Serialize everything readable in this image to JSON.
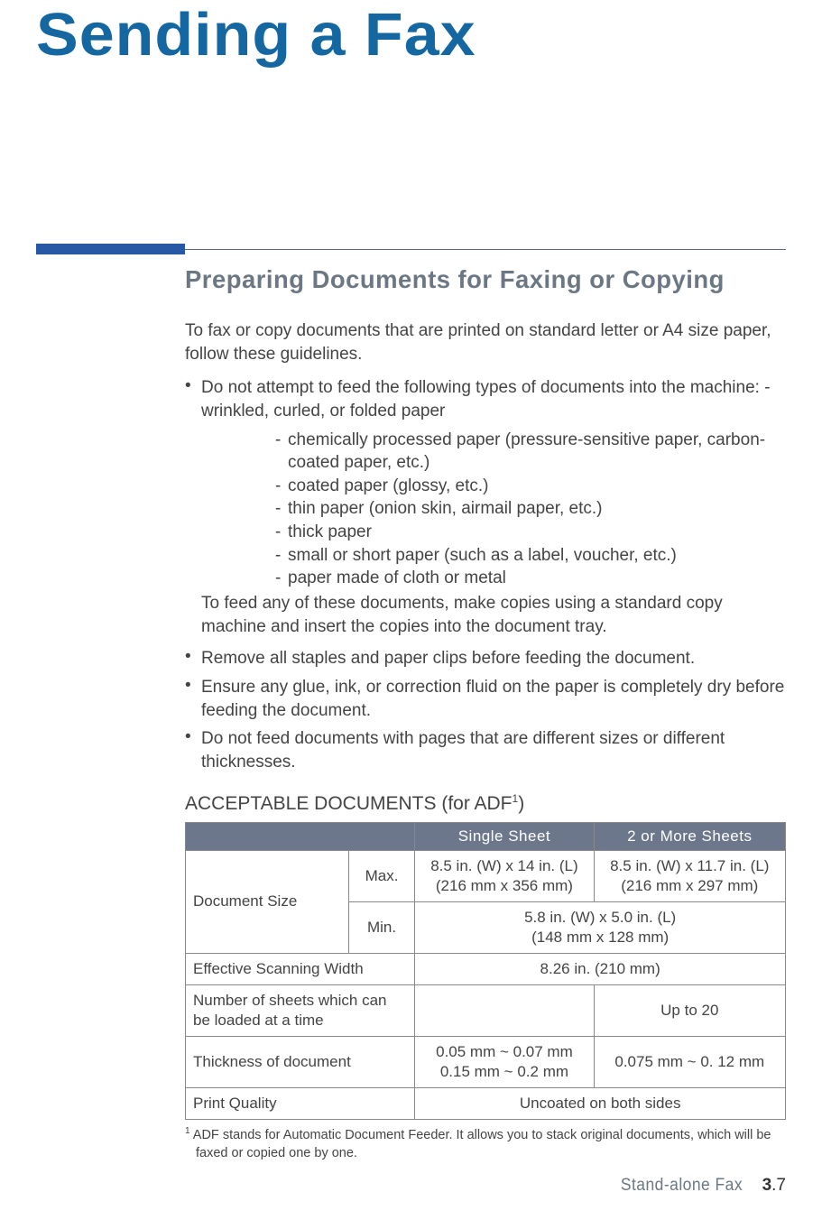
{
  "chapter_title": "Sending a Fax",
  "rule": {
    "thick_color": "#2758a5",
    "thin_color": "#5d6a7d"
  },
  "section_heading": "Preparing Documents for Faxing or Copying",
  "intro": "To fax or copy documents that are printed on standard letter or A4 size paper, follow these guidelines.",
  "bullets": {
    "b1_lead": "Do not attempt to feed the following types of documents into the machine:",
    "b1_sub_first": "- wrinkled, curled, or folded paper",
    "b1_subs": [
      "chemically processed paper (pressure-sensitive paper, carbon-coated paper, etc.)",
      "coated paper (glossy, etc.)",
      "thin paper (onion skin, airmail paper, etc.)",
      "thick paper",
      "small or short paper (such as a label, voucher, etc.)",
      "paper made of cloth or metal"
    ],
    "b1_after": "To feed any of these documents, make copies using a standard copy machine and insert the copies into the document tray.",
    "b2": "Remove all staples and paper clips before feeding the document.",
    "b3": "Ensure any glue, ink, or correction fluid on the paper is completely dry before feeding the document.",
    "b4": "Do not feed documents with pages that are different sizes or different thicknesses."
  },
  "table": {
    "title_pre": "ACCEPTABLE DOCUMENTS (for ADF",
    "title_sup": "1",
    "title_post": ")",
    "header_bg": "#6d778b",
    "header_fg": "#ffffff",
    "border_color": "#888888",
    "columns": [
      "",
      "",
      "Single Sheet",
      "2 or More Sheets"
    ],
    "rows": {
      "docsize_label": "Document Size",
      "max_label": "Max.",
      "max_single_l1": "8.5 in. (W) x 14 in. (L)",
      "max_single_l2": "(216 mm x 356 mm)",
      "max_multi_l1": "8.5 in. (W) x 11.7 in. (L)",
      "max_multi_l2": "(216 mm x 297 mm)",
      "min_label": "Min.",
      "min_both_l1": "5.8 in. (W) x 5.0 in. (L)",
      "min_both_l2": "(148 mm x 128 mm)",
      "scanwidth_label": "Effective Scanning Width",
      "scanwidth_val": "8.26 in. (210 mm)",
      "numsheets_label_l1": "Number of sheets which can",
      "numsheets_label_l2": "be loaded at a time",
      "numsheets_single": "",
      "numsheets_multi": "Up to 20",
      "thickness_label": "Thickness of document",
      "thickness_single_l1": "0.05 mm ~ 0.07 mm",
      "thickness_single_l2": "0.15 mm ~ 0.2 mm",
      "thickness_multi": "0.075 mm ~ 0. 12 mm",
      "printq_label": "Print Quality",
      "printq_val": "Uncoated on both sides"
    }
  },
  "footnote": {
    "sup": "1",
    "text": " ADF stands for Automatic Document Feeder. It allows you to stack original documents, which will be faxed or copied one by one."
  },
  "footer": {
    "section": "Stand-alone Fax",
    "page_bold": "3",
    "page_rest": ".7"
  }
}
